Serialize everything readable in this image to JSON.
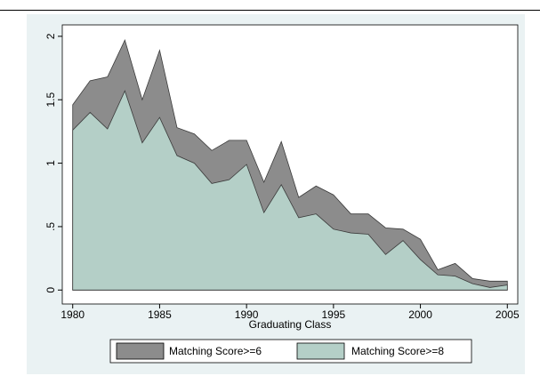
{
  "chart_data": {
    "type": "area",
    "x": [
      1980,
      1981,
      1982,
      1983,
      1984,
      1985,
      1986,
      1987,
      1988,
      1989,
      1990,
      1991,
      1992,
      1993,
      1994,
      1995,
      1996,
      1997,
      1998,
      1999,
      2000,
      2001,
      2002,
      2003,
      2004,
      2005
    ],
    "series": [
      {
        "name": "Matching Score>=6",
        "color": "#8c8c8c",
        "values": [
          1.46,
          1.65,
          1.68,
          1.97,
          1.5,
          1.89,
          1.28,
          1.23,
          1.1,
          1.18,
          1.18,
          0.85,
          1.17,
          0.73,
          0.82,
          0.75,
          0.6,
          0.6,
          0.49,
          0.48,
          0.4,
          0.16,
          0.21,
          0.09,
          0.07,
          0.07
        ]
      },
      {
        "name": "Matching Score>=8",
        "color": "#b4cfc7",
        "values": [
          1.26,
          1.4,
          1.27,
          1.57,
          1.16,
          1.36,
          1.06,
          1.0,
          0.84,
          0.87,
          0.99,
          0.61,
          0.83,
          0.57,
          0.6,
          0.48,
          0.45,
          0.44,
          0.28,
          0.39,
          0.24,
          0.12,
          0.11,
          0.05,
          0.02,
          0.04
        ]
      }
    ],
    "x_label": "Graduating Class",
    "xlim": [
      1979.4,
      2005.6
    ],
    "xticks": [
      1980,
      1985,
      1990,
      1995,
      2000,
      2005
    ],
    "ylim": [
      -0.11,
      2.09
    ],
    "yticks": [
      0,
      {
        "value": 0.5,
        "label": ".5"
      },
      1,
      1.5,
      2
    ],
    "grid": false,
    "legend": "bottom"
  }
}
